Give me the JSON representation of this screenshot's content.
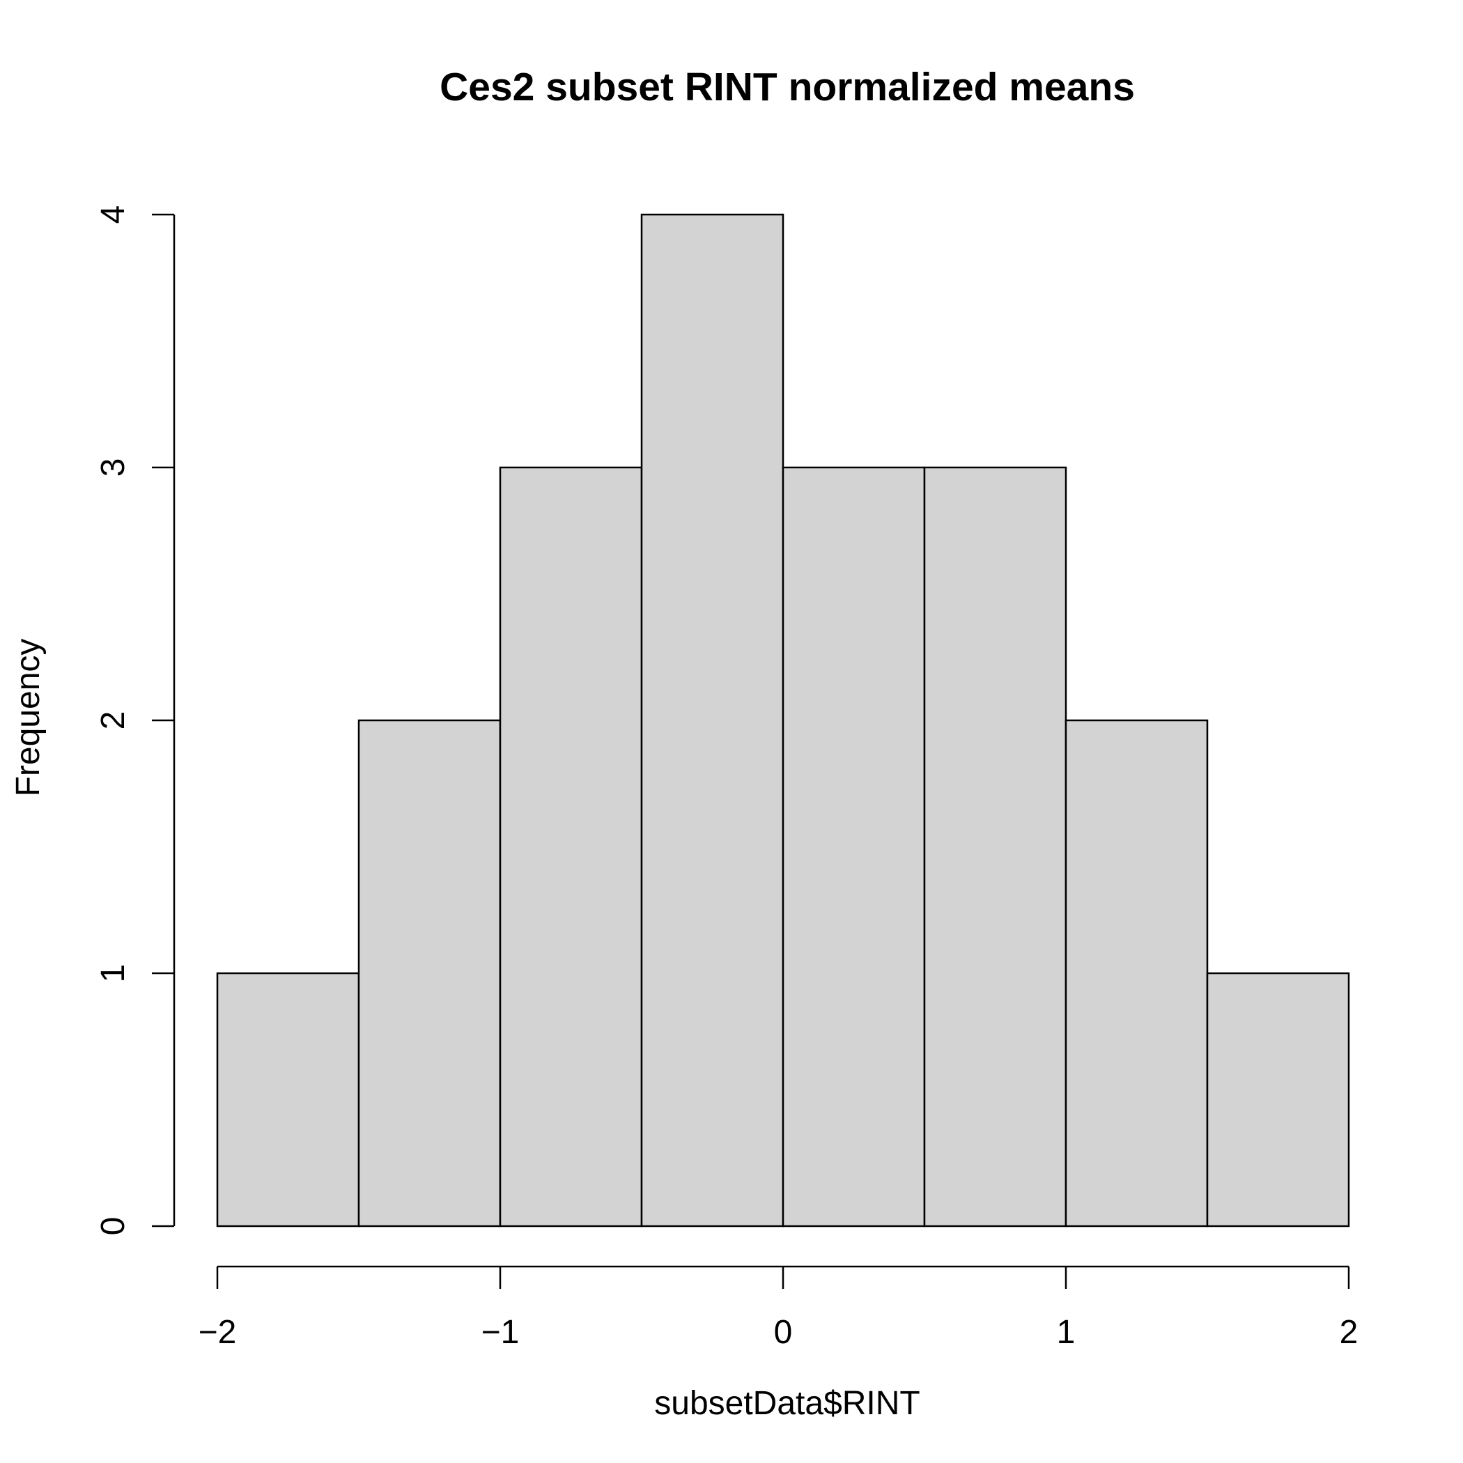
{
  "chart_data": {
    "type": "bar",
    "title": "Ces2 subset RINT normalized means",
    "xlabel": "subsetData$RINT",
    "ylabel": "Frequency",
    "bin_edges": [
      -2,
      -1.5,
      -1,
      -0.5,
      0,
      0.5,
      1,
      1.5,
      2
    ],
    "values": [
      1,
      2,
      3,
      4,
      3,
      3,
      2,
      1
    ],
    "xlim": [
      -2,
      2
    ],
    "ylim": [
      0,
      4
    ],
    "x_ticks": [
      -2,
      -1,
      0,
      1,
      2
    ],
    "x_tick_labels": [
      "−2",
      "−1",
      "0",
      "1",
      "2"
    ],
    "y_ticks": [
      0,
      1,
      2,
      3,
      4
    ],
    "y_tick_labels": [
      "0",
      "1",
      "2",
      "3",
      "4"
    ],
    "grid": false,
    "legend": "none",
    "bar_fill": "#d3d3d3",
    "bar_stroke": "#000000"
  }
}
